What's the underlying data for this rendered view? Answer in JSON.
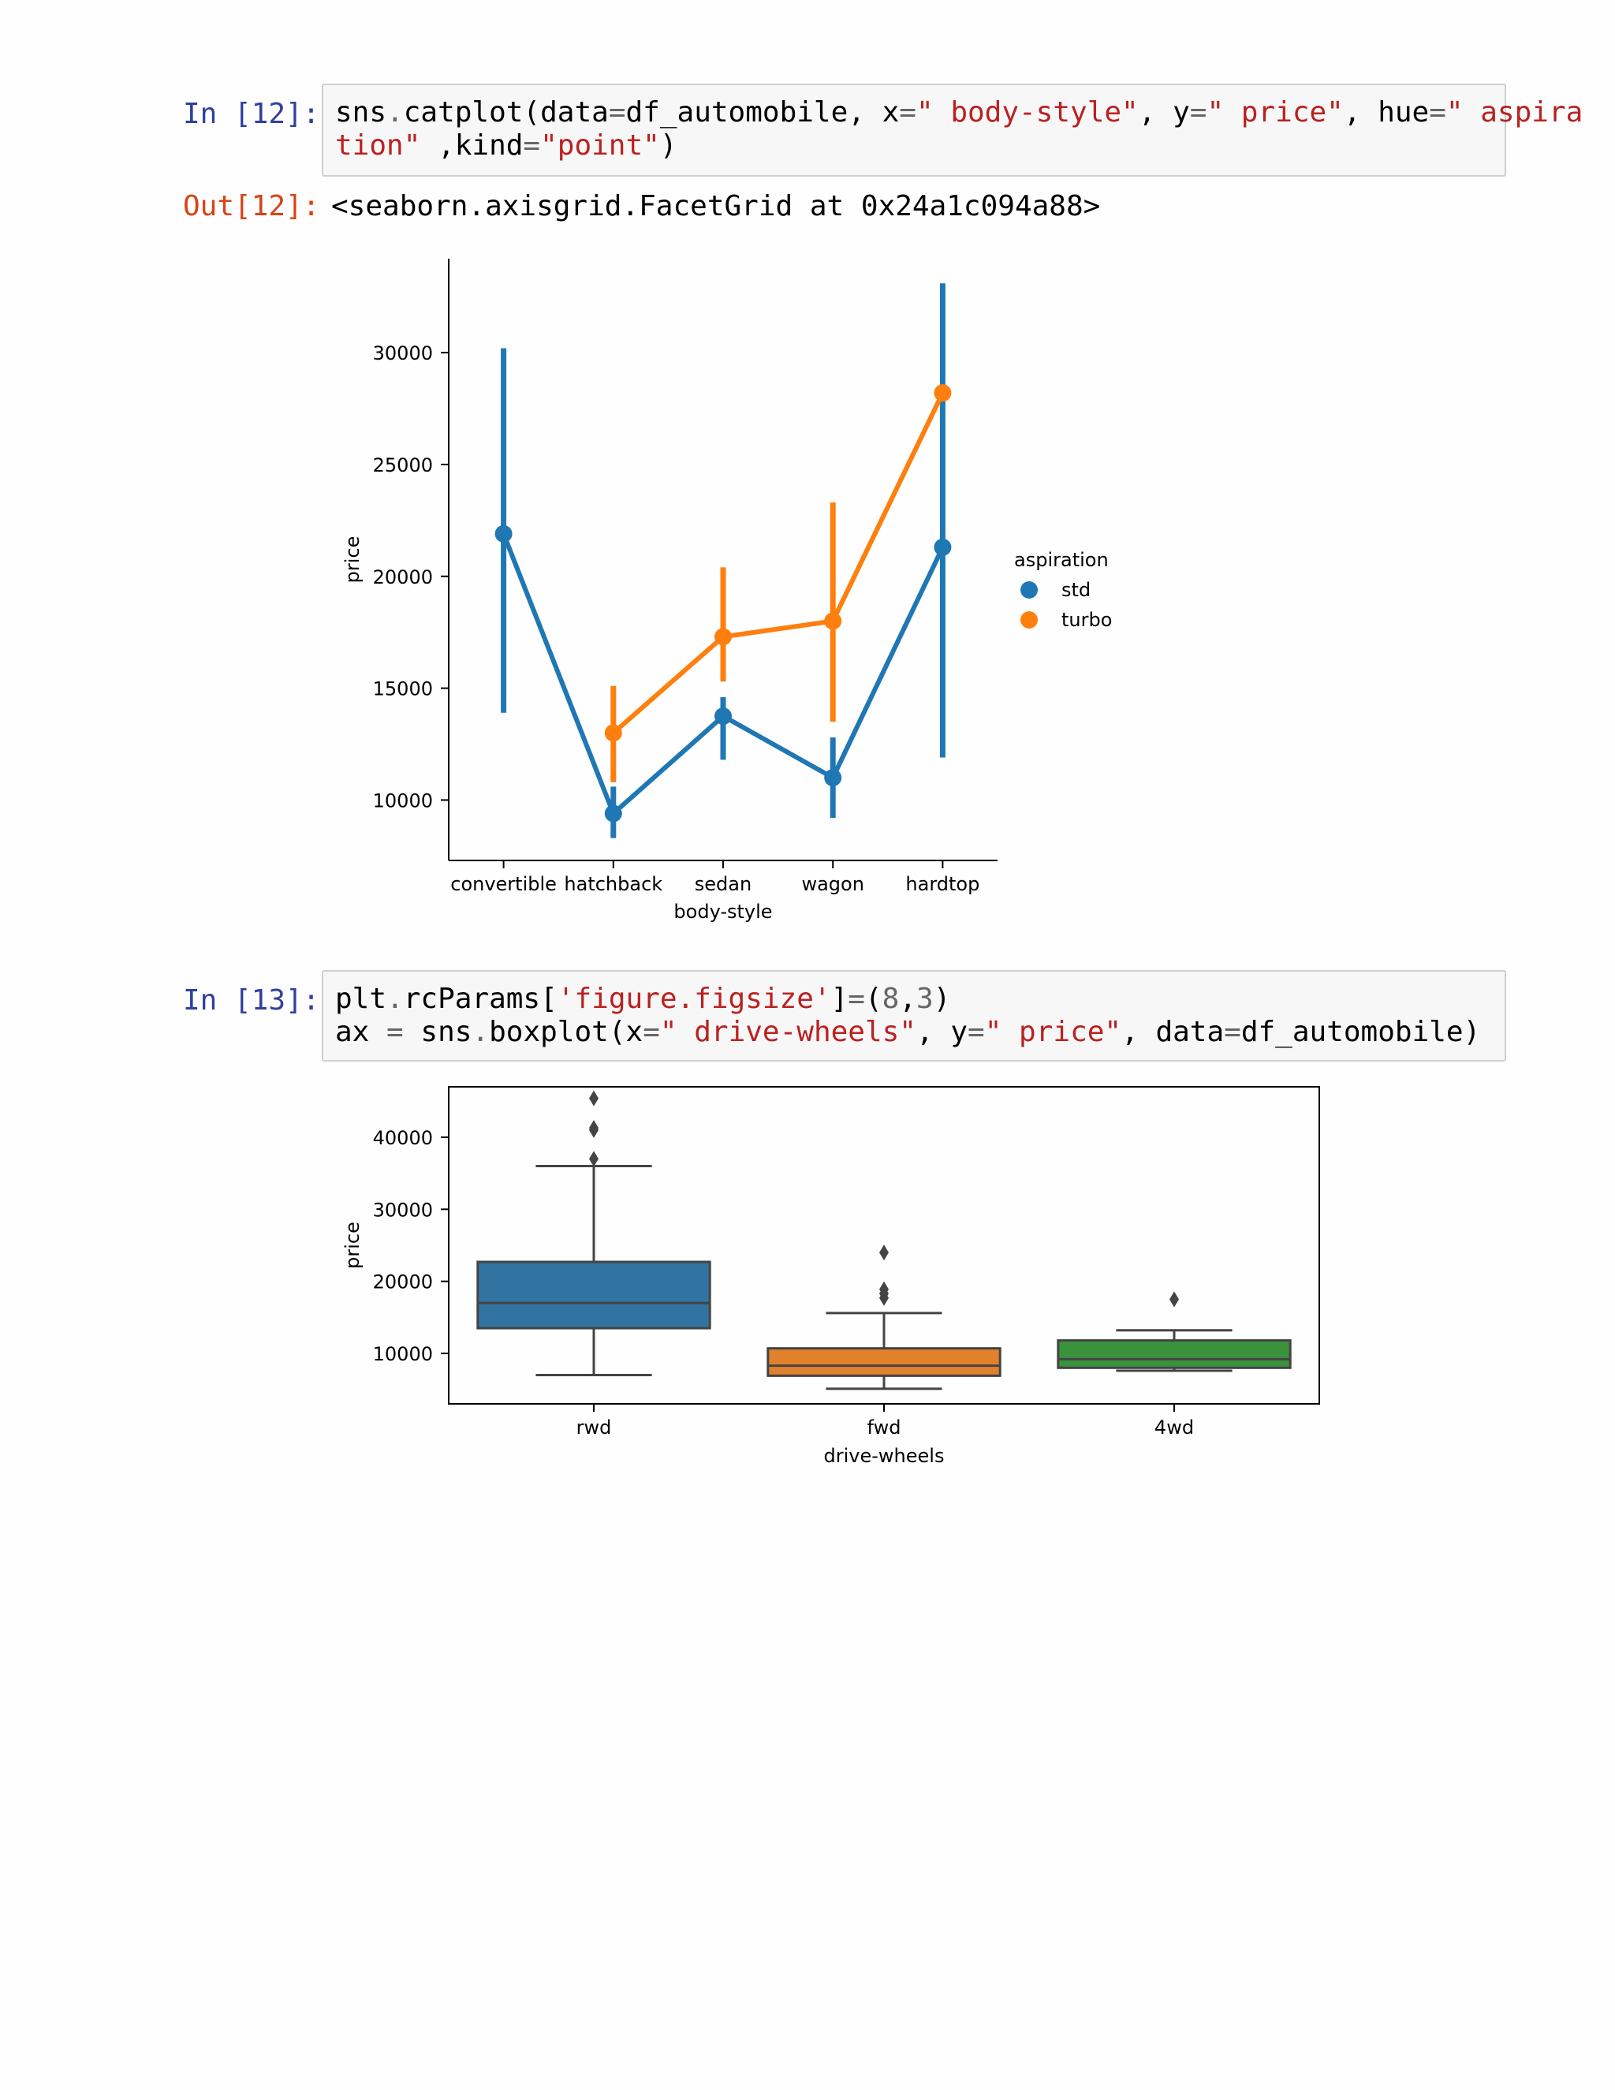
{
  "cells": [
    {
      "in_prompt": "In [12]:",
      "code_lines": [
        [
          {
            "t": "sns",
            "c": "plain"
          },
          {
            "t": ".",
            "c": "op"
          },
          {
            "t": "catplot(data",
            "c": "plain"
          },
          {
            "t": "=",
            "c": "op"
          },
          {
            "t": "df_automobile, x",
            "c": "plain"
          },
          {
            "t": "=",
            "c": "op"
          },
          {
            "t": "\" body-style\"",
            "c": "str"
          },
          {
            "t": ", y",
            "c": "plain"
          },
          {
            "t": "=",
            "c": "op"
          },
          {
            "t": "\" price\"",
            "c": "str"
          },
          {
            "t": ", hue",
            "c": "plain"
          },
          {
            "t": "=",
            "c": "op"
          },
          {
            "t": "\" aspira",
            "c": "str"
          }
        ],
        [
          {
            "t": "tion\"",
            "c": "str"
          },
          {
            "t": " ,kind",
            "c": "plain"
          },
          {
            "t": "=",
            "c": "op"
          },
          {
            "t": "\"point\"",
            "c": "str"
          },
          {
            "t": ")",
            "c": "plain"
          }
        ]
      ],
      "out_prompt": "Out[12]:",
      "out_text": "<seaborn.axisgrid.FacetGrid at 0x24a1c094a88>"
    },
    {
      "in_prompt": "In [13]:",
      "code_lines": [
        [
          {
            "t": "plt",
            "c": "plain"
          },
          {
            "t": ".",
            "c": "op"
          },
          {
            "t": "rcParams[",
            "c": "plain"
          },
          {
            "t": "'figure.figsize'",
            "c": "str"
          },
          {
            "t": "]",
            "c": "plain"
          },
          {
            "t": "=",
            "c": "op"
          },
          {
            "t": "(",
            "c": "plain"
          },
          {
            "t": "8",
            "c": "num"
          },
          {
            "t": ",",
            "c": "plain"
          },
          {
            "t": "3",
            "c": "num"
          },
          {
            "t": ")",
            "c": "plain"
          }
        ],
        [
          {
            "t": "ax ",
            "c": "plain"
          },
          {
            "t": "=",
            "c": "op"
          },
          {
            "t": " sns",
            "c": "plain"
          },
          {
            "t": ".",
            "c": "op"
          },
          {
            "t": "boxplot(x",
            "c": "plain"
          },
          {
            "t": "=",
            "c": "op"
          },
          {
            "t": "\" drive-wheels\"",
            "c": "str"
          },
          {
            "t": ", y",
            "c": "plain"
          },
          {
            "t": "=",
            "c": "op"
          },
          {
            "t": "\" price\"",
            "c": "str"
          },
          {
            "t": ", data",
            "c": "plain"
          },
          {
            "t": "=",
            "c": "op"
          },
          {
            "t": "df_automobile)",
            "c": "plain"
          }
        ]
      ]
    }
  ],
  "chart_data": [
    {
      "type": "line",
      "xlabel": "body-style",
      "ylabel": "price",
      "categories": [
        "convertible",
        "hatchback",
        "sedan",
        "wagon",
        "hardtop"
      ],
      "yticks": [
        10000,
        15000,
        20000,
        25000,
        30000
      ],
      "ylim": [
        7300,
        34200
      ],
      "legend": {
        "title": "aspiration",
        "placement": "right"
      },
      "series": [
        {
          "name": "std",
          "color": "#1f77b4",
          "values": [
            21900,
            9400,
            13750,
            11000,
            21300
          ],
          "ci_low": [
            13900,
            8300,
            11800,
            9200,
            11900
          ],
          "ci_high": [
            30200,
            10600,
            14600,
            12800,
            33100
          ]
        },
        {
          "name": "turbo",
          "color": "#ff7f0e",
          "values": [
            null,
            13000,
            17300,
            18000,
            28200
          ],
          "ci_low": [
            null,
            10800,
            15300,
            13500,
            28200
          ],
          "ci_high": [
            null,
            15100,
            20400,
            23300,
            28200
          ]
        }
      ]
    },
    {
      "type": "box",
      "xlabel": "drive-wheels",
      "ylabel": "price",
      "categories": [
        "rwd",
        "fwd",
        "4wd"
      ],
      "yticks": [
        10000,
        20000,
        30000,
        40000
      ],
      "ylim": [
        3000,
        47000
      ],
      "grid": false,
      "boxes": [
        {
          "color": "#3274a1",
          "whisker_low": 7000,
          "q1": 13500,
          "median": 17000,
          "q3": 22700,
          "whisker_high": 36000,
          "outliers": [
            37000,
            41000,
            41300,
            45400
          ]
        },
        {
          "color": "#e1812c",
          "whisker_low": 5100,
          "q1": 6900,
          "median": 8300,
          "q3": 10700,
          "whisker_high": 15600,
          "outliers": [
            17700,
            18300,
            18900,
            24000
          ]
        },
        {
          "color": "#3a923a",
          "whisker_low": 7600,
          "q1": 8000,
          "median": 9200,
          "q3": 11800,
          "whisker_high": 13200,
          "outliers": [
            17500
          ]
        }
      ]
    }
  ]
}
